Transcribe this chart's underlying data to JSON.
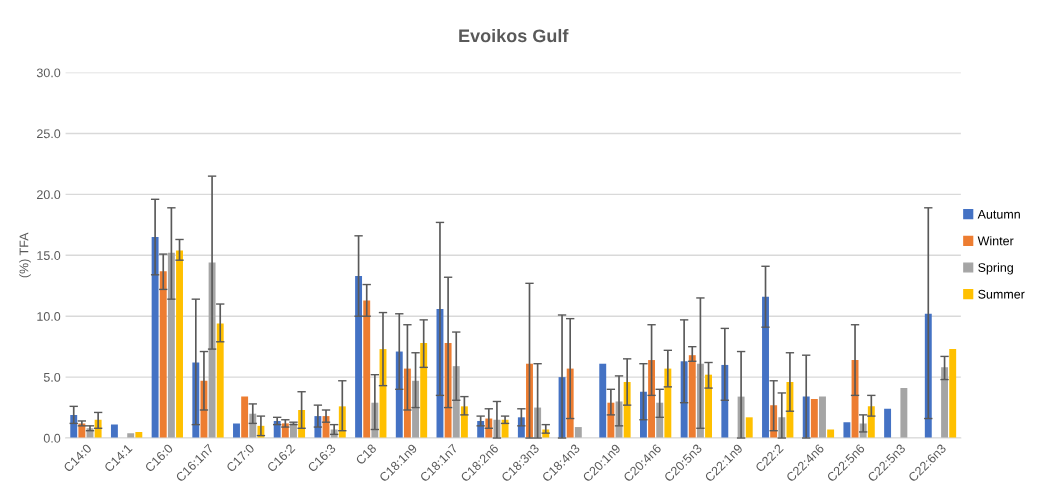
{
  "chart_data": {
    "type": "bar",
    "title": "Evoikos Gulf",
    "ylabel": "(%) TFA",
    "categories": [
      "C14:0",
      "C14:1",
      "C16:0",
      "C16:1n7",
      "C17:0",
      "C16:2",
      "C16:3",
      "C18",
      "C18:1n9",
      "C18:1n7",
      "C18:2n6",
      "C18:3n3",
      "C18:4n3",
      "C20:1n9",
      "C20:4n6",
      "C20:5n3",
      "C22:1n9",
      "C22:2",
      "C22:4n6",
      "C22:5n6",
      "C22:5n3",
      "C22:6n3"
    ],
    "series": [
      {
        "name": "Autumn",
        "color": "#4472c4",
        "values": [
          1.9,
          1.1,
          16.5,
          6.2,
          1.2,
          1.4,
          1.8,
          13.3,
          7.1,
          10.6,
          1.4,
          1.7,
          5.0,
          6.1,
          3.8,
          6.3,
          6.0,
          11.6,
          3.4,
          1.3,
          2.4,
          10.2
        ],
        "errors": [
          [
            1.2,
            2.6
          ],
          null,
          [
            13.4,
            19.6
          ],
          [
            1.1,
            11.4
          ],
          null,
          [
            1.1,
            1.7
          ],
          [
            0.9,
            2.7
          ],
          [
            10.0,
            16.6
          ],
          [
            4.0,
            10.2
          ],
          [
            3.5,
            17.7
          ],
          [
            1.0,
            1.8
          ],
          [
            1.0,
            2.4
          ],
          [
            0,
            10.1
          ],
          null,
          [
            1.5,
            6.1
          ],
          [
            2.9,
            9.7
          ],
          [
            3.1,
            9.0
          ],
          [
            9.1,
            14.1
          ],
          [
            0,
            6.8
          ],
          null,
          null,
          [
            1.6,
            18.9
          ]
        ]
      },
      {
        "name": "Winter",
        "color": "#ed7d31",
        "values": [
          1.2,
          null,
          13.7,
          4.7,
          3.4,
          1.2,
          1.8,
          11.3,
          5.7,
          7.8,
          1.6,
          6.1,
          5.7,
          2.9,
          6.4,
          6.8,
          null,
          2.7,
          3.2,
          6.4,
          null,
          null
        ],
        "errors": [
          [
            1.0,
            1.4
          ],
          null,
          [
            12.2,
            15.1
          ],
          [
            2.3,
            7.1
          ],
          null,
          [
            0.9,
            1.5
          ],
          [
            1.3,
            2.3
          ],
          [
            10.0,
            12.6
          ],
          [
            2.3,
            9.3
          ],
          [
            2.5,
            13.2
          ],
          [
            0.8,
            2.4
          ],
          [
            0,
            12.7
          ],
          [
            1.6,
            9.8
          ],
          [
            1.9,
            4.0
          ],
          [
            3.5,
            9.3
          ],
          [
            6.3,
            7.5
          ],
          null,
          [
            0.6,
            4.7
          ],
          null,
          [
            3.5,
            9.3
          ],
          null,
          null
        ]
      },
      {
        "name": "Spring",
        "color": "#a5a5a5",
        "values": [
          0.8,
          0.4,
          15.2,
          14.4,
          2.0,
          1.2,
          0.7,
          2.9,
          4.7,
          5.9,
          1.5,
          2.5,
          0.9,
          3.0,
          2.9,
          6.1,
          3.4,
          1.7,
          3.4,
          1.2,
          4.1,
          5.8
        ],
        "errors": [
          [
            0.6,
            1.0
          ],
          null,
          [
            11.4,
            18.9
          ],
          [
            7.3,
            21.5
          ],
          [
            1.2,
            2.8
          ],
          [
            1.1,
            1.3
          ],
          [
            0.3,
            1.1
          ],
          [
            0.7,
            5.2
          ],
          [
            2.5,
            7.0
          ],
          [
            3.1,
            8.7
          ],
          [
            0,
            3.0
          ],
          [
            0,
            6.1
          ],
          null,
          [
            1.0,
            5.1
          ],
          [
            1.7,
            4.0
          ],
          [
            0.8,
            11.5
          ],
          [
            0,
            7.1
          ],
          [
            0,
            3.7
          ],
          null,
          [
            0.5,
            1.9
          ],
          null,
          [
            4.8,
            6.7
          ]
        ]
      },
      {
        "name": "Summer",
        "color": "#ffc000",
        "values": [
          1.5,
          0.5,
          15.4,
          9.4,
          1.0,
          2.3,
          2.6,
          7.3,
          7.8,
          2.6,
          1.5,
          0.7,
          null,
          4.6,
          5.7,
          5.2,
          1.7,
          4.6,
          0.7,
          2.6,
          null,
          7.3
        ],
        "errors": [
          [
            0.8,
            2.1
          ],
          null,
          [
            14.6,
            16.3
          ],
          [
            7.9,
            11.0
          ],
          [
            0.2,
            1.8
          ],
          [
            0.8,
            3.8
          ],
          [
            0.6,
            4.7
          ],
          [
            4.3,
            10.3
          ],
          [
            5.8,
            9.7
          ],
          [
            1.9,
            3.4
          ],
          [
            1.2,
            1.8
          ],
          [
            0.4,
            1.1
          ],
          null,
          [
            2.7,
            6.5
          ],
          [
            4.2,
            7.2
          ],
          [
            4.1,
            6.2
          ],
          null,
          [
            2.2,
            7.0
          ],
          null,
          [
            1.8,
            3.5
          ],
          null,
          null
        ]
      }
    ],
    "ylim": [
      0,
      30
    ],
    "yticks": [
      {
        "value": 0,
        "label": "0.0"
      },
      {
        "value": 5,
        "label": "5.0"
      },
      {
        "value": 10,
        "label": "10.0"
      },
      {
        "value": 15,
        "label": "15.0"
      },
      {
        "value": 20,
        "label": "20.0"
      },
      {
        "value": 25,
        "label": "25.0"
      },
      {
        "value": 30,
        "label": "30.0"
      }
    ],
    "grid": "y",
    "legend": "right"
  }
}
